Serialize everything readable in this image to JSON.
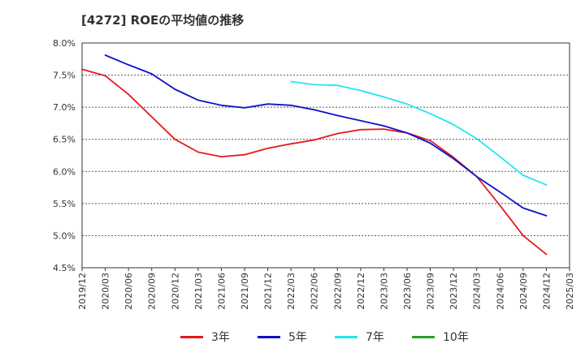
{
  "title": "[4272]  ROEの平均値の推移",
  "chart_data": {
    "type": "line",
    "title": "[4272]  ROEの平均値の推移",
    "xlabel": "",
    "ylabel": "",
    "x_ticks": [
      "2019/12",
      "2020/03",
      "2020/06",
      "2020/09",
      "2020/12",
      "2021/03",
      "2021/06",
      "2021/09",
      "2021/12",
      "2022/03",
      "2022/06",
      "2022/09",
      "2022/12",
      "2023/03",
      "2023/06",
      "2023/09",
      "2023/12",
      "2024/03",
      "2024/06",
      "2024/09",
      "2024/12",
      "2025/03"
    ],
    "y_ticks": [
      "8.0%",
      "7.5%",
      "7.0%",
      "6.5%",
      "6.0%",
      "5.5%",
      "5.0%",
      "4.5%"
    ],
    "ylim": [
      4.5,
      8.0
    ],
    "grid": "horizontal dashed",
    "legend_position": "bottom",
    "series": [
      {
        "name": "3年",
        "color": "#e31a1c",
        "x": [
          "2019/12",
          "2020/03",
          "2020/06",
          "2020/09",
          "2020/12",
          "2021/03",
          "2021/06",
          "2021/09",
          "2021/12",
          "2022/03",
          "2022/06",
          "2022/09",
          "2022/12",
          "2023/03",
          "2023/06",
          "2023/09",
          "2023/12",
          "2024/03",
          "2024/06",
          "2024/09",
          "2024/12"
        ],
        "values": [
          7.59,
          7.49,
          7.2,
          6.85,
          6.5,
          6.3,
          6.23,
          6.26,
          6.36,
          6.43,
          6.49,
          6.59,
          6.65,
          6.66,
          6.6,
          6.48,
          6.22,
          5.92,
          5.47,
          5.0,
          4.71
        ]
      },
      {
        "name": "5年",
        "color": "#1010c8",
        "x": [
          "2020/03",
          "2020/06",
          "2020/09",
          "2020/12",
          "2021/03",
          "2021/06",
          "2021/09",
          "2021/12",
          "2022/03",
          "2022/06",
          "2022/09",
          "2022/12",
          "2023/03",
          "2023/06",
          "2023/09",
          "2023/12",
          "2024/03",
          "2024/06",
          "2024/09",
          "2024/12"
        ],
        "values": [
          7.81,
          7.66,
          7.52,
          7.28,
          7.11,
          7.03,
          6.99,
          7.05,
          7.03,
          6.96,
          6.87,
          6.79,
          6.71,
          6.6,
          6.44,
          6.2,
          5.92,
          5.68,
          5.43,
          5.31
        ]
      },
      {
        "name": "7年",
        "color": "#22e5f0",
        "x": [
          "2022/03",
          "2022/06",
          "2022/09",
          "2022/12",
          "2023/03",
          "2023/06",
          "2023/09",
          "2023/12",
          "2024/03",
          "2024/06",
          "2024/09",
          "2024/12"
        ],
        "values": [
          7.4,
          7.35,
          7.34,
          7.26,
          7.16,
          7.05,
          6.9,
          6.73,
          6.51,
          6.23,
          5.94,
          5.79
        ]
      },
      {
        "name": "10年",
        "color": "#2ca02c",
        "x": [],
        "values": []
      }
    ]
  }
}
